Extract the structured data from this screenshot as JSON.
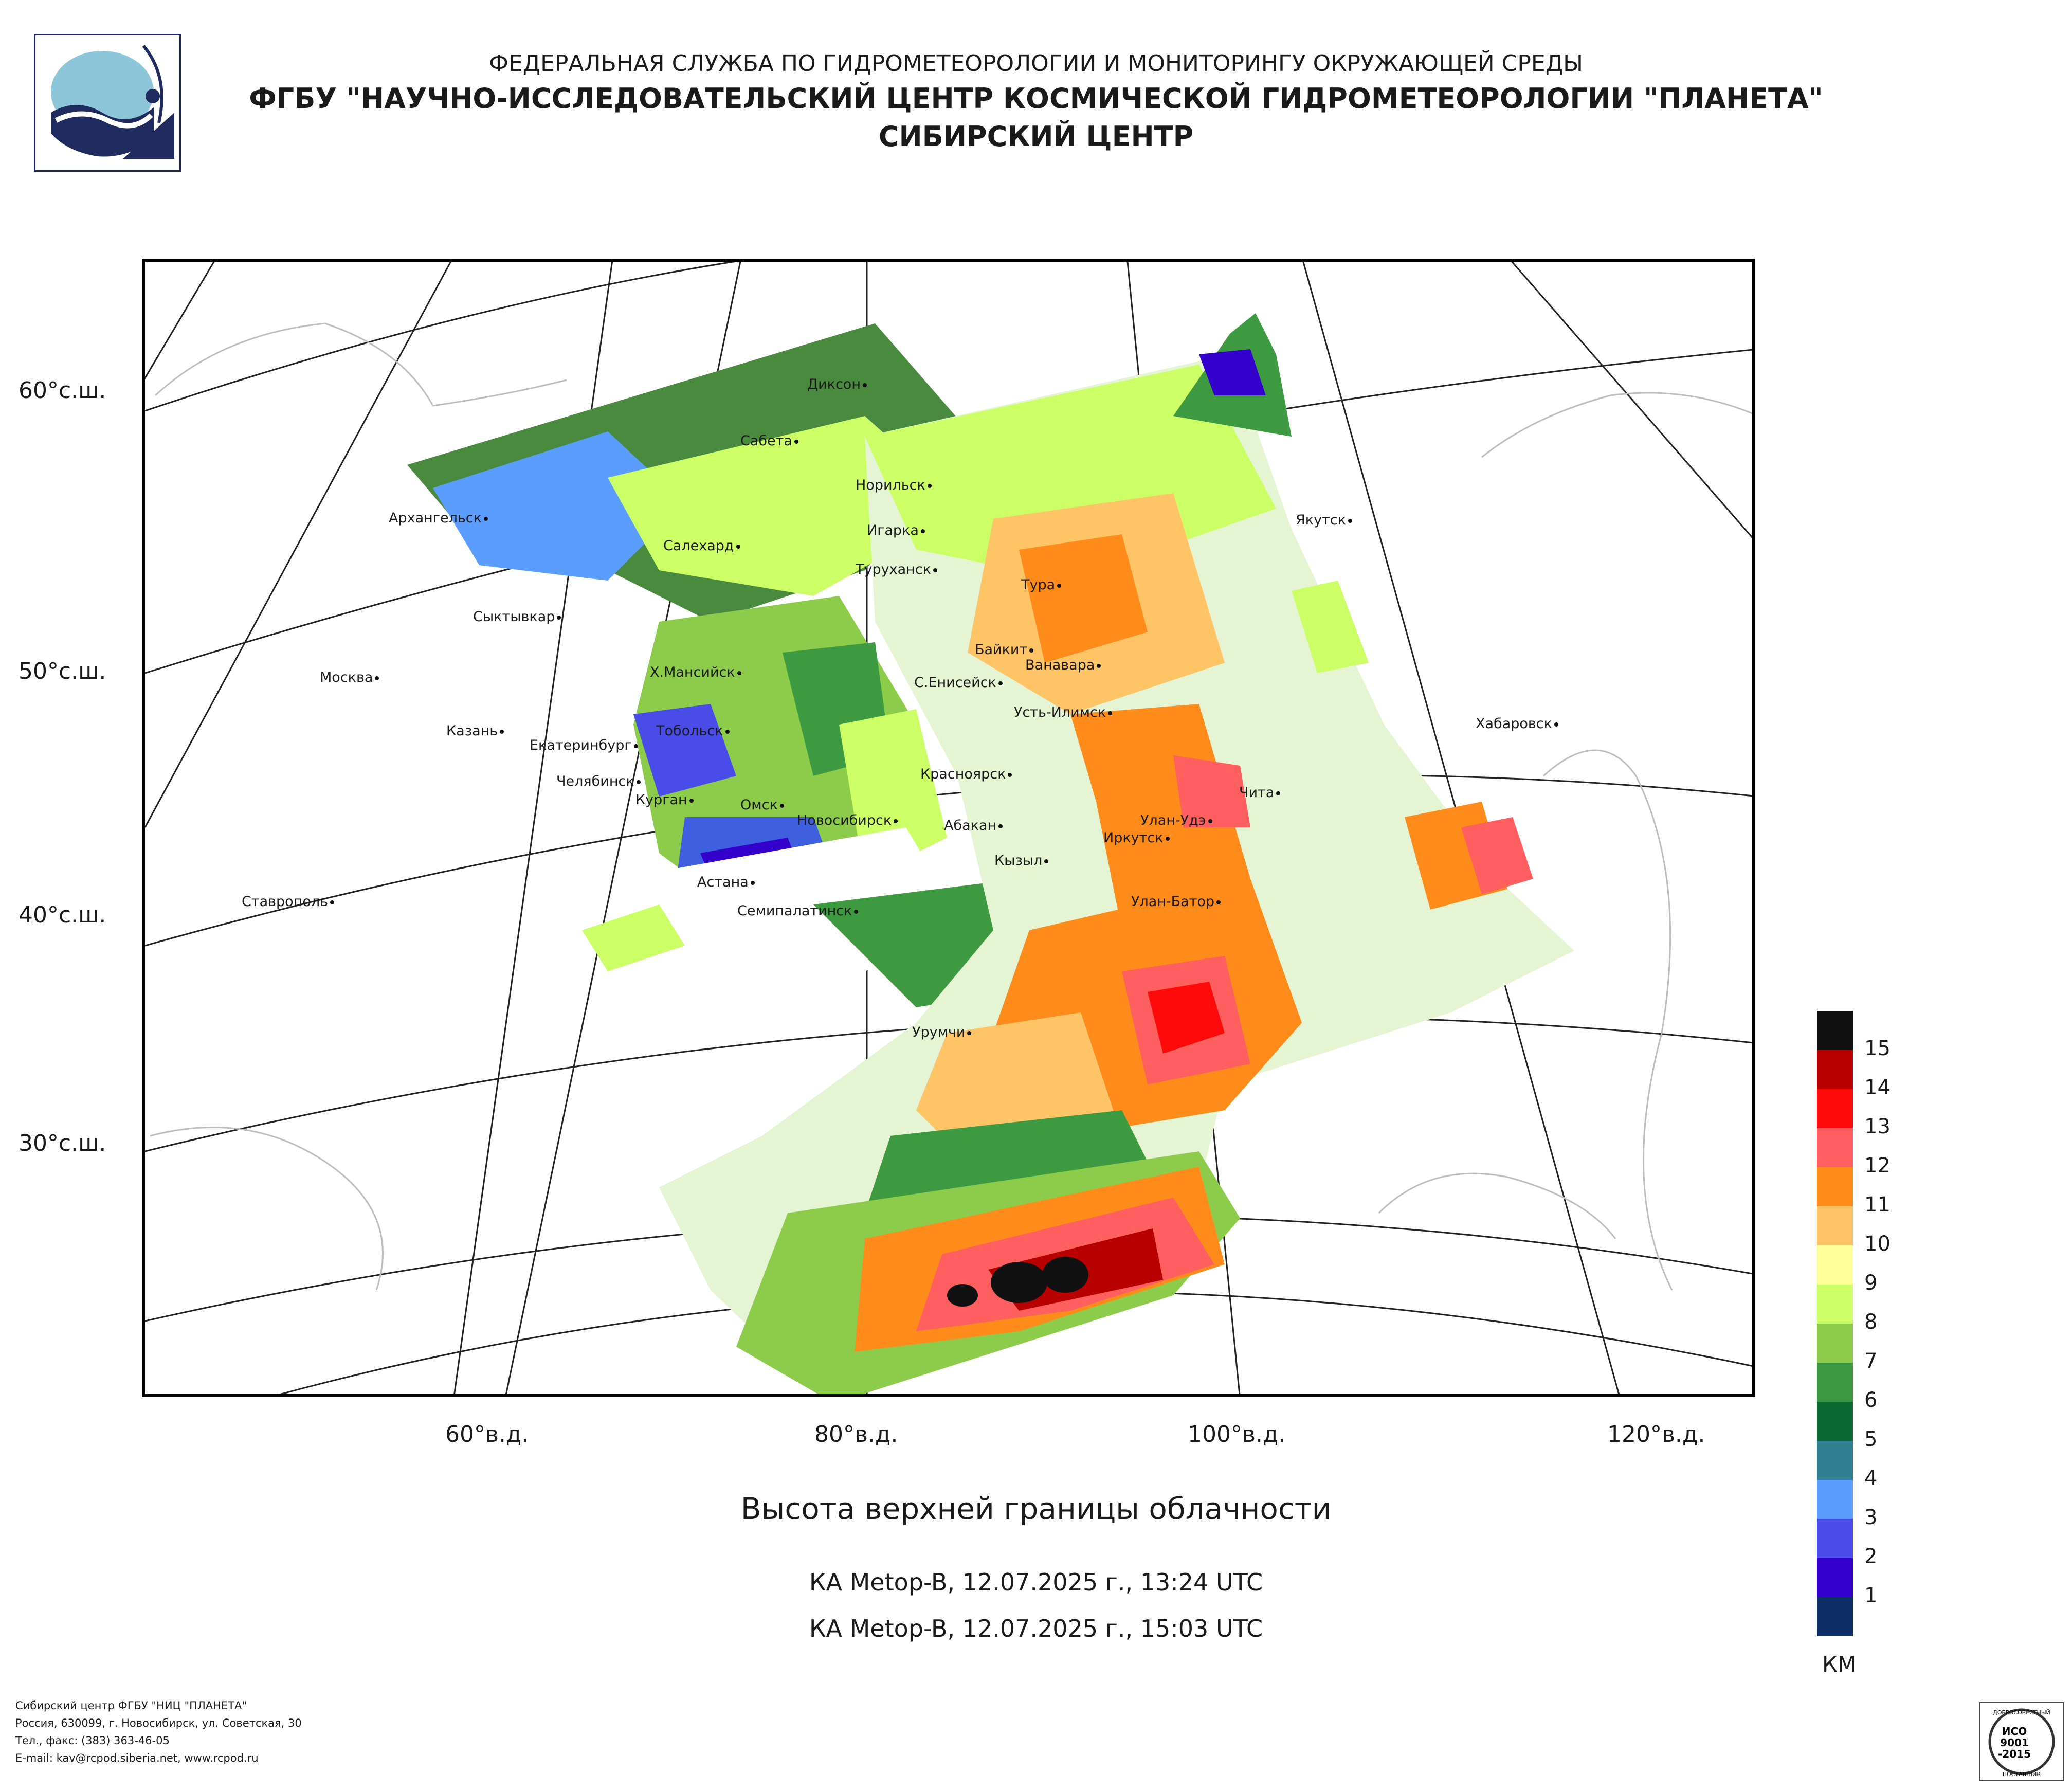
{
  "header": {
    "line1": "ФЕДЕРАЛЬНАЯ СЛУЖБА ПО ГИДРОМЕТЕОРОЛОГИИ И МОНИТОРИНГУ ОКРУЖАЮЩЕЙ СРЕДЫ",
    "line2": "ФГБУ \"НАУЧНО-ИССЛЕДОВАТЕЛЬСКИЙ ЦЕНТР КОСМИЧЕСКОЙ ГИДРОМЕТЕОРОЛОГИИ \"ПЛАНЕТА\"",
    "line3": "СИБИРСКИЙ ЦЕНТР"
  },
  "map": {
    "lat_labels": [
      "60°с.ш.",
      "50°с.ш.",
      "40°с.ш.",
      "30°с.ш."
    ],
    "lon_labels": [
      "60°в.д.",
      "80°в.д.",
      "100°в.д.",
      "120°в.д."
    ],
    "cities": [
      "Диксон",
      "Сабета",
      "Норильск",
      "Архангельск",
      "Салехард",
      "Игарка",
      "Якутск",
      "Туруханск",
      "Тура",
      "Сыктывкар",
      "Байкит",
      "Ванавара",
      "Москва",
      "Х.Мансийск",
      "С.Енисейск",
      "Усть-Илимск",
      "Казань",
      "Тобольск",
      "Хабаровск",
      "Екатеринбург",
      "Челябинск",
      "Красноярск",
      "Чита",
      "Курган",
      "Омск",
      "Новосибирск",
      "Абакан",
      "Улан-Удэ",
      "Иркутск",
      "Кызыл",
      "Астана",
      "Ставрополь",
      "Улан-Батор",
      "Семипалатинск",
      "Урумчи"
    ]
  },
  "title": "Высота верхней границы облачности",
  "satellite_passes": [
    "КА Metop-B, 12.07.2025 г., 13:24 UTC",
    "КА Metop-B, 12.07.2025 г., 15:03 UTC"
  ],
  "legend": {
    "unit": "КМ",
    "levels": [
      {
        "value": "15",
        "color": "#111111"
      },
      {
        "value": "14",
        "color": "#b80000"
      },
      {
        "value": "13",
        "color": "#ff0a0a"
      },
      {
        "value": "12",
        "color": "#ff5f5f"
      },
      {
        "value": "11",
        "color": "#ff8c1a"
      },
      {
        "value": "10",
        "color": "#ffc466"
      },
      {
        "value": "9",
        "color": "#ffff99"
      },
      {
        "value": "8",
        "color": "#ccff66"
      },
      {
        "value": "7",
        "color": "#8ccc4a"
      },
      {
        "value": "6",
        "color": "#3e9a40"
      },
      {
        "value": "5",
        "color": "#0b6a32"
      },
      {
        "value": "4",
        "color": "#2f8090"
      },
      {
        "value": "3",
        "color": "#5b9dff"
      },
      {
        "value": "2",
        "color": "#4a4ce8"
      },
      {
        "value": "1",
        "color": "#3300cc"
      },
      {
        "value": "",
        "color": "#0e2f66"
      }
    ]
  },
  "footer": {
    "line1": "Сибирский центр ФГБУ \"НИЦ \"ПЛАНЕТА\"",
    "line2": "Россия, 630099, г. Новосибирск, ул. Советская, 30",
    "line3": "Тел., факс: (383) 363-46-05",
    "line4": "E-mail: kav@rcpod.siberia.net, www.rcpod.ru"
  },
  "badge": {
    "top": "ДОБРОСОВЕСТНЫЙ",
    "iso1": "ИСО",
    "iso2": "9001",
    "iso3": "-2015",
    "bottom": "ПОСТАВЩИК"
  }
}
